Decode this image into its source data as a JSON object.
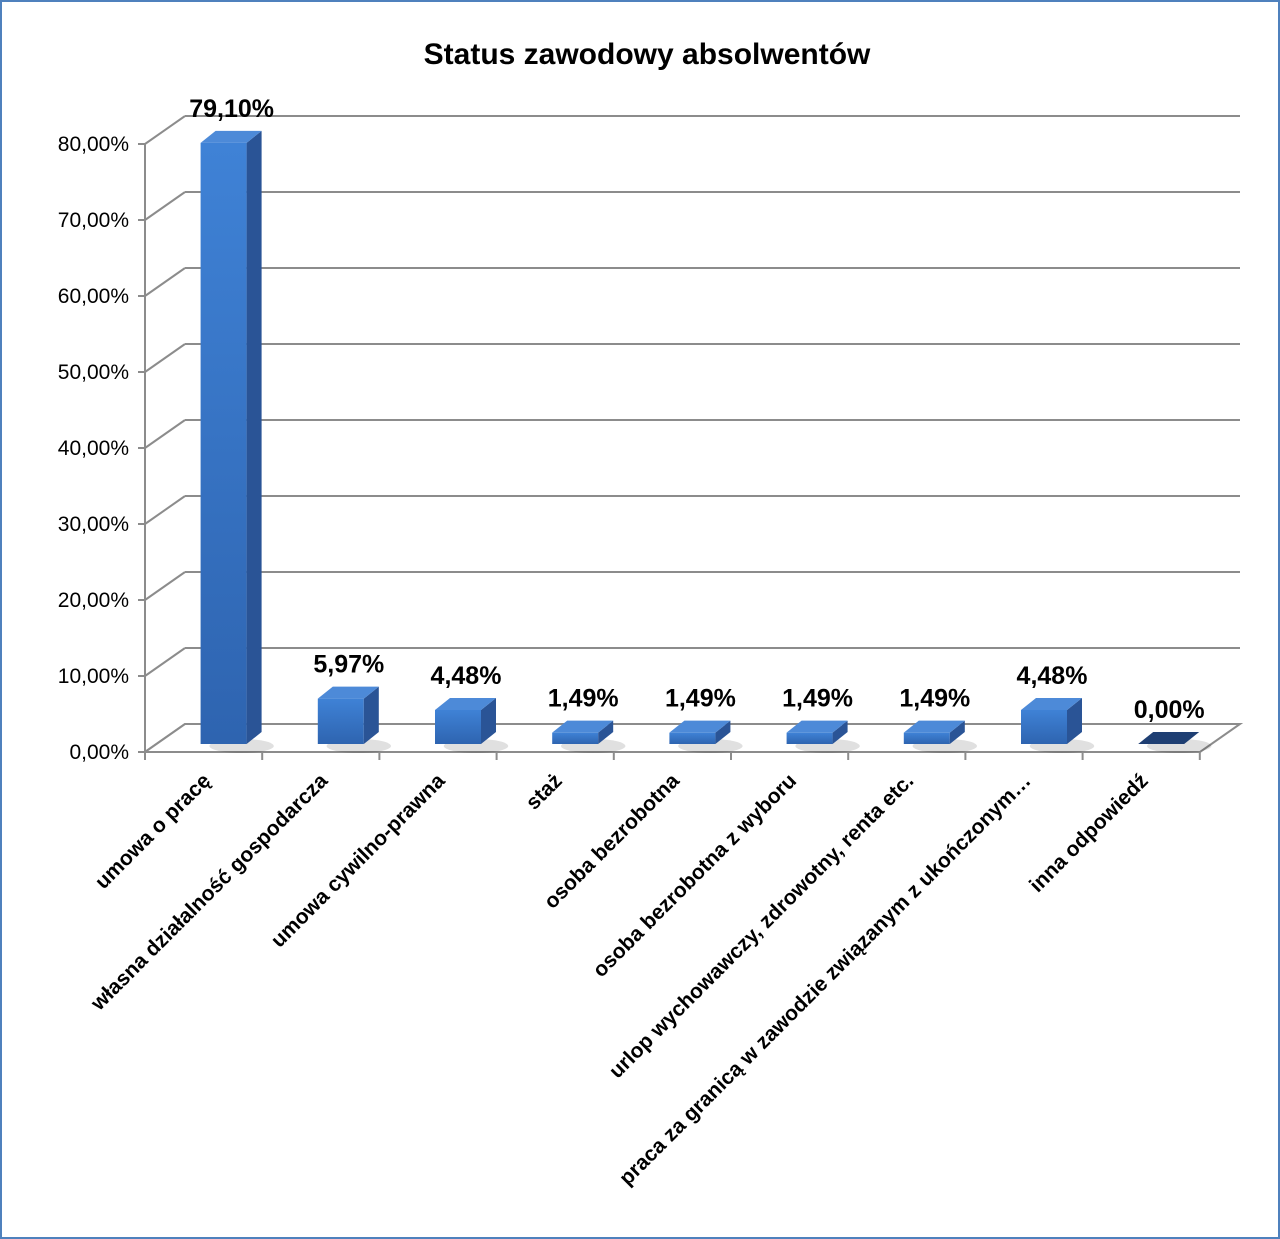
{
  "chart_data": {
    "type": "bar",
    "title": "Status zawodowy absolwentów",
    "categories": [
      "umowa o pracę",
      "własna działalność gospodarcza",
      "umowa cywilno-prawna",
      "staż",
      "osoba bezrobotna",
      "osoba bezrobotna z wyboru",
      "urlop wychowawczy, zdrowotny, renta  etc.",
      "praca za granicą w zawodzie związanym z ukończonym…",
      "inna odpowiedź"
    ],
    "values": [
      79.1,
      5.97,
      4.48,
      1.49,
      1.49,
      1.49,
      1.49,
      4.48,
      0.0
    ],
    "data_labels": [
      "79,10%",
      "5,97%",
      "4,48%",
      "1,49%",
      "1,49%",
      "1,49%",
      "1,49%",
      "4,48%",
      "0,00%"
    ],
    "yticks": [
      "0,00%",
      "10,00%",
      "20,00%",
      "30,00%",
      "40,00%",
      "50,00%",
      "60,00%",
      "70,00%",
      "80,00%"
    ],
    "ylim": [
      0,
      80
    ],
    "xlabel": "",
    "ylabel": "",
    "grid": true,
    "legend": "none",
    "style": "3d-column",
    "colors": {
      "bar_front": "#3f7fd0",
      "bar_side": "#2a5496",
      "bar_top": "#4d8ad8",
      "gridline": "#8c8c8c",
      "frame": "#4f81bd"
    }
  }
}
